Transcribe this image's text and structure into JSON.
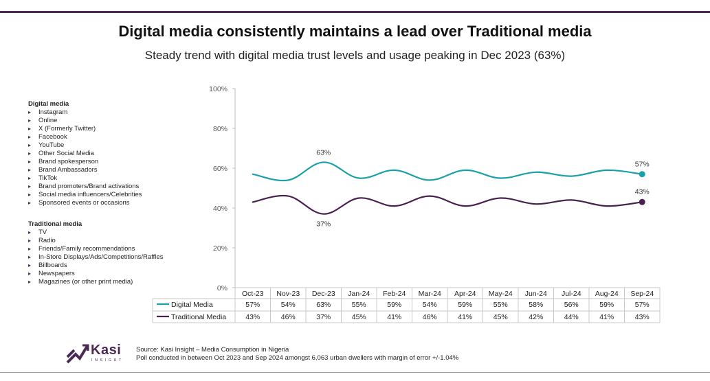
{
  "title": "Digital media consistently maintains a lead over Traditional media",
  "subtitle": "Steady trend with digital media trust levels and usage peaking in Dec 2023 (63%)",
  "legend_lists": {
    "digital": {
      "heading": "Digital media",
      "items": [
        "Instagram",
        "Online",
        "X (Formerly Twitter)",
        "Facebook",
        "YouTube",
        "Other Social Media",
        "Brand spokesperson",
        "Brand Ambassadors",
        "TikTok",
        "Brand promoters/Brand activations",
        "Social media influencers/Celebrities",
        "Sponsored events or occasions"
      ]
    },
    "traditional": {
      "heading": "Traditional media",
      "items": [
        "TV",
        "Radio",
        "Friends/Family recommendations",
        "In-Store Displays/Ads/Competitions/Raffles",
        "Billboards",
        "Newspapers",
        "Magazines (or other print media)"
      ]
    }
  },
  "chart_data": {
    "type": "line",
    "categories": [
      "Oct-23",
      "Nov-23",
      "Dec-23",
      "Jan-24",
      "Feb-24",
      "Mar-24",
      "Apr-24",
      "May-24",
      "Jun-24",
      "Jul-24",
      "Aug-24",
      "Sep-24"
    ],
    "series": [
      {
        "name": "Digital Media",
        "values": [
          57,
          54,
          63,
          55,
          59,
          54,
          59,
          55,
          58,
          56,
          59,
          57
        ],
        "color": "#1aa0a8",
        "display": [
          "57%",
          "54%",
          "63%",
          "55%",
          "59%",
          "54%",
          "59%",
          "55%",
          "58%",
          "56%",
          "59%",
          "57%"
        ]
      },
      {
        "name": "Traditional Media",
        "values": [
          43,
          46,
          37,
          45,
          41,
          46,
          41,
          45,
          42,
          44,
          41,
          43
        ],
        "color": "#4a2050",
        "display": [
          "43%",
          "46%",
          "37%",
          "45%",
          "41%",
          "46%",
          "41%",
          "45%",
          "42%",
          "44%",
          "41%",
          "43%"
        ]
      }
    ],
    "ylim": [
      0,
      100
    ],
    "yticks": [
      0,
      20,
      40,
      60,
      80,
      100
    ],
    "ytick_labels": [
      "0%",
      "20%",
      "40%",
      "60%",
      "80%",
      "100%"
    ],
    "annotations": [
      {
        "series": 0,
        "index": 2,
        "text": "63%"
      },
      {
        "series": 0,
        "index": 11,
        "text": "57%"
      },
      {
        "series": 1,
        "index": 2,
        "text": "37%"
      },
      {
        "series": 1,
        "index": 11,
        "text": "43%"
      }
    ],
    "title": "",
    "xlabel": "",
    "ylabel": ""
  },
  "logo": {
    "word": "Kasi",
    "sub": "INSIGHT"
  },
  "source": {
    "line1": "Source: Kasi Insight – Media Consumption in Nigeria",
    "line2": "Poll conducted  in between Oct 2023 and Sep 2024 amongst 6,063 urban dwellers with margin of error +/-1.04%"
  },
  "colors": {
    "accent": "#4a2a55",
    "digital": "#1aa0a8",
    "traditional": "#4a2050"
  }
}
